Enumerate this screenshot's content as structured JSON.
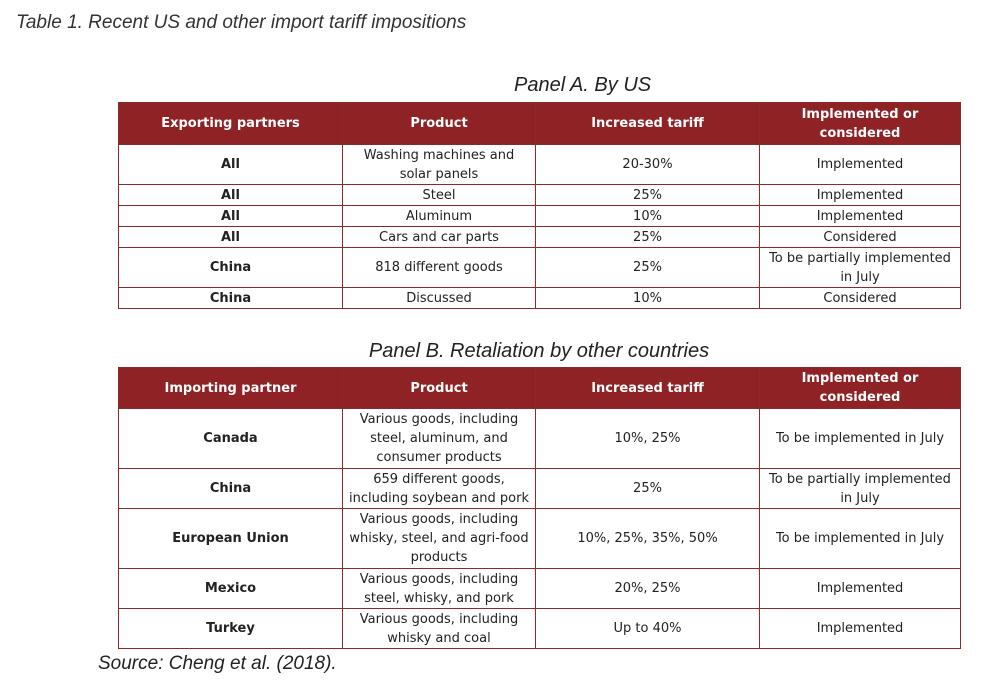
{
  "caption": "Table 1. Recent US and other import tariff impositions",
  "panel_a": {
    "title": "Panel A. By US",
    "headers": [
      "Exporting partners",
      "Product",
      "Increased tariff",
      "Implemented or considered"
    ],
    "rows": [
      [
        "All",
        "Washing machines and solar panels",
        "20-30%",
        "Implemented"
      ],
      [
        "All",
        "Steel",
        "25%",
        "Implemented"
      ],
      [
        "All",
        "Aluminum",
        "10%",
        "Implemented"
      ],
      [
        "All",
        "Cars and car parts",
        "25%",
        "Considered"
      ],
      [
        "China",
        "818 different goods",
        "25%",
        "To be partially implemented in July"
      ],
      [
        "China",
        "Discussed",
        "10%",
        "Considered"
      ]
    ]
  },
  "panel_b": {
    "title": "Panel B. Retaliation by other countries",
    "headers": [
      "Importing partner",
      "Product",
      "Increased tariff",
      "Implemented or considered"
    ],
    "rows": [
      [
        "Canada",
        "Various goods, including steel, aluminum, and consumer products",
        "10%, 25%",
        "To be implemented in July"
      ],
      [
        "China",
        "659 different goods, including soybean and pork",
        "25%",
        "To be partially implemented in July"
      ],
      [
        "European Union",
        "Various goods, including whisky, steel, and agri-food products",
        "10%, 25%, 35%, 50%",
        "To be implemented in July"
      ],
      [
        "Mexico",
        "Various goods, including steel, whisky, and pork",
        "20%, 25%",
        "Implemented"
      ],
      [
        "Turkey",
        "Various goods, including whisky and coal",
        "Up to 40%",
        "Implemented"
      ]
    ]
  },
  "source": "Source: Cheng et al. (2018).",
  "colors": {
    "header_bg": "#8f2224",
    "border": "#8b2a2a"
  }
}
